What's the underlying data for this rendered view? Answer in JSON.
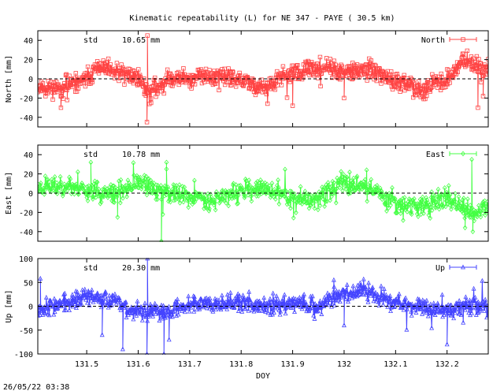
{
  "title": "Kinematic repeatability (L) for NE 347 - PAYE  ( 30.5 km)",
  "footer_timestamp": "26/05/22 03:38",
  "chart_data": [
    {
      "type": "line",
      "ylabel": "North [mm]",
      "ylim": [
        -50,
        50
      ],
      "yticks": [
        -40,
        -20,
        0,
        20,
        40
      ],
      "xlim": [
        131.405,
        132.28
      ],
      "xticks": [
        131.5,
        131.6,
        131.7,
        131.8,
        131.9,
        132,
        132.1,
        132.2
      ],
      "xtick_labels": [],
      "grid": false,
      "legend": "top-right",
      "std_label": "std",
      "std_value": "10.65 mm",
      "series": [
        {
          "name": "North",
          "color": "#ff4444",
          "marker": "square",
          "seed": 11,
          "trend": [
            [
              131.405,
              -8
            ],
            [
              131.45,
              -10
            ],
            [
              131.5,
              0
            ],
            [
              131.52,
              12
            ],
            [
              131.56,
              6
            ],
            [
              131.6,
              2
            ],
            [
              131.62,
              -15
            ],
            [
              131.66,
              0
            ],
            [
              131.75,
              3
            ],
            [
              131.8,
              -2
            ],
            [
              131.85,
              -10
            ],
            [
              131.88,
              2
            ],
            [
              131.92,
              8
            ],
            [
              131.96,
              12
            ],
            [
              132.0,
              6
            ],
            [
              132.05,
              10
            ],
            [
              132.1,
              -4
            ],
            [
              132.15,
              -10
            ],
            [
              132.2,
              -2
            ],
            [
              132.23,
              20
            ],
            [
              132.28,
              8
            ]
          ],
          "noise": 7,
          "spikes": [
            [
              131.617,
              -45
            ],
            [
              131.618,
              45
            ],
            [
              131.625,
              -25
            ],
            [
              131.45,
              -30
            ],
            [
              131.462,
              -22
            ],
            [
              131.9,
              -28
            ],
            [
              132.0,
              -20
            ],
            [
              132.27,
              -18
            ],
            [
              132.26,
              -30
            ],
            [
              131.42,
              -18
            ]
          ]
        }
      ]
    },
    {
      "type": "line",
      "ylabel": "East [mm]",
      "ylim": [
        -50,
        50
      ],
      "yticks": [
        -40,
        -20,
        0,
        20,
        40
      ],
      "xlim": [
        131.405,
        132.28
      ],
      "xticks": [
        131.5,
        131.6,
        131.7,
        131.8,
        131.9,
        132,
        132.1,
        132.2
      ],
      "xtick_labels": [],
      "grid": false,
      "legend": "top-right",
      "std_label": "std",
      "std_value": "10.78 mm",
      "series": [
        {
          "name": "East",
          "color": "#44ff44",
          "marker": "diamond",
          "seed": 23,
          "trend": [
            [
              131.405,
              6
            ],
            [
              131.45,
              8
            ],
            [
              131.5,
              4
            ],
            [
              131.55,
              -2
            ],
            [
              131.6,
              10
            ],
            [
              131.65,
              2
            ],
            [
              131.7,
              -4
            ],
            [
              131.75,
              -6
            ],
            [
              131.8,
              2
            ],
            [
              131.85,
              4
            ],
            [
              131.9,
              -6
            ],
            [
              131.94,
              -8
            ],
            [
              132.0,
              12
            ],
            [
              132.05,
              6
            ],
            [
              132.1,
              -10
            ],
            [
              132.15,
              -14
            ],
            [
              132.2,
              -4
            ],
            [
              132.25,
              -24
            ],
            [
              132.28,
              -12
            ]
          ],
          "noise": 8,
          "spikes": [
            [
              131.508,
              32
            ],
            [
              131.645,
              -60
            ],
            [
              131.648,
              -22
            ],
            [
              131.655,
              32
            ],
            [
              131.655,
              25
            ],
            [
              132.248,
              35
            ],
            [
              132.25,
              -40
            ],
            [
              132.235,
              -36
            ],
            [
              131.56,
              -25
            ]
          ]
        }
      ]
    },
    {
      "type": "line",
      "ylabel": "Up [mm]",
      "xlabel": "DOY",
      "ylim": [
        -100,
        100
      ],
      "yticks": [
        -100,
        -50,
        0,
        50,
        100
      ],
      "xlim": [
        131.405,
        132.28
      ],
      "xticks": [
        131.5,
        131.6,
        131.7,
        131.8,
        131.9,
        132,
        132.1,
        132.2
      ],
      "xtick_labels": [
        "131.5",
        "131.6",
        "131.7",
        "131.8",
        "131.9",
        "132",
        "132.1",
        "132.2"
      ],
      "grid": false,
      "legend": "top-right",
      "std_label": "std",
      "std_value": "20.30 mm",
      "series": [
        {
          "name": "Up",
          "color": "#4444ff",
          "marker": "triangle",
          "seed": 37,
          "trend": [
            [
              131.405,
              -4
            ],
            [
              131.45,
              5
            ],
            [
              131.5,
              18
            ],
            [
              131.53,
              20
            ],
            [
              131.58,
              -5
            ],
            [
              131.62,
              -15
            ],
            [
              131.66,
              -10
            ],
            [
              131.7,
              5
            ],
            [
              131.75,
              10
            ],
            [
              131.8,
              6
            ],
            [
              131.85,
              -2
            ],
            [
              131.9,
              8
            ],
            [
              131.95,
              0
            ],
            [
              132.0,
              30
            ],
            [
              132.05,
              28
            ],
            [
              132.1,
              10
            ],
            [
              132.15,
              -5
            ],
            [
              132.2,
              -10
            ],
            [
              132.25,
              2
            ],
            [
              132.28,
              -5
            ]
          ],
          "noise": 14,
          "spikes": [
            [
              131.617,
              -100
            ],
            [
              131.618,
              100
            ],
            [
              131.65,
              -100
            ],
            [
              131.66,
              -70
            ],
            [
              131.53,
              -60
            ],
            [
              131.57,
              -90
            ],
            [
              132.2,
              -80
            ],
            [
              131.41,
              58
            ],
            [
              132.0,
              -40
            ],
            [
              131.98,
              55
            ]
          ]
        }
      ]
    }
  ]
}
